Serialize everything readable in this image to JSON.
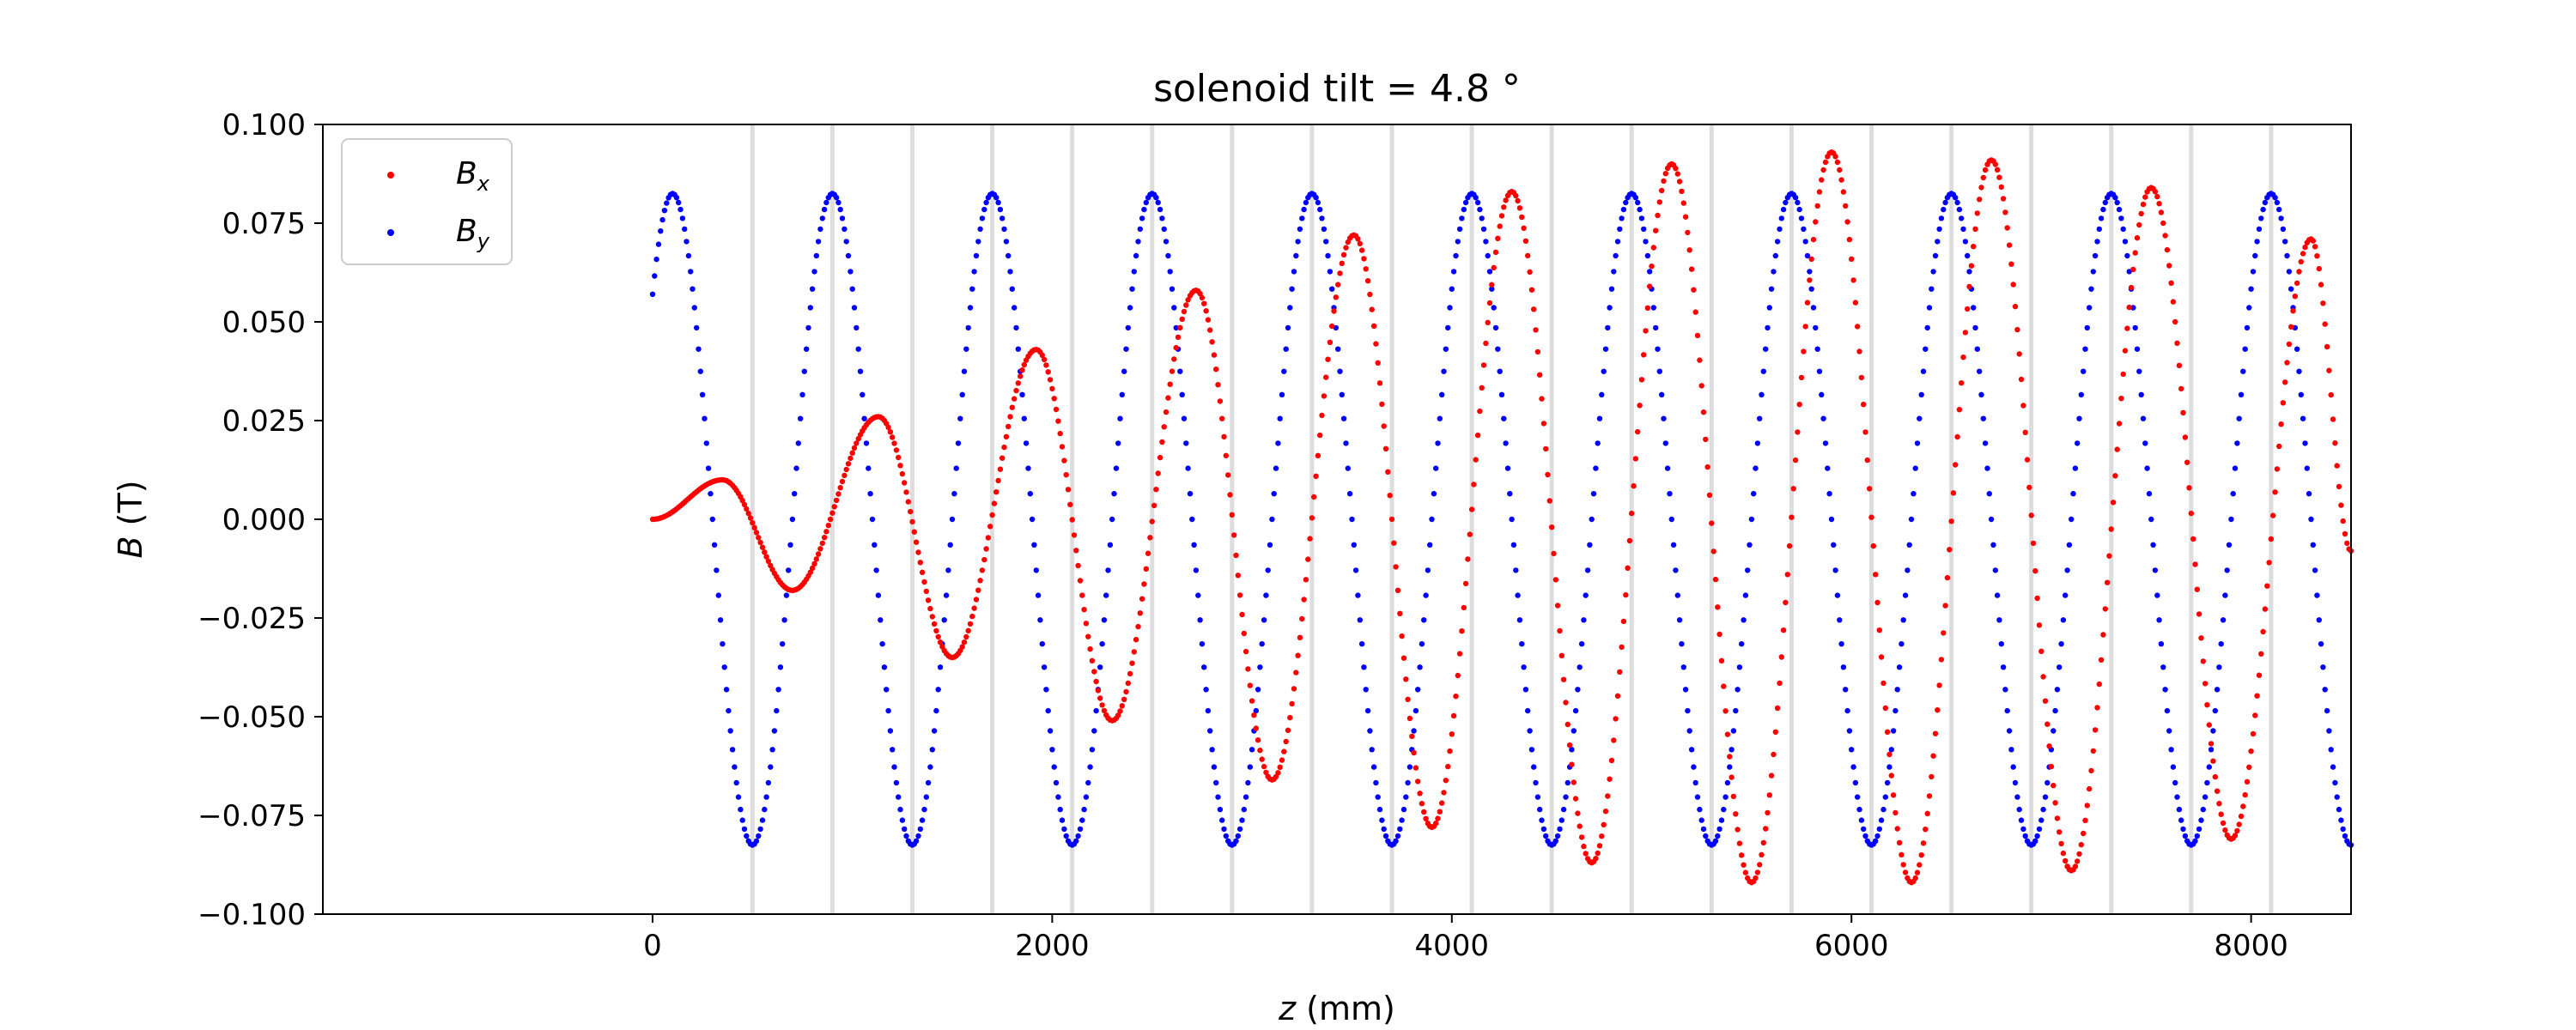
{
  "chart_data": {
    "type": "scatter",
    "title": "solenoid tilt = 4.8 °",
    "xlabel_var": "z",
    "xlabel_unit": "(mm)",
    "ylabel_var": "B",
    "ylabel_unit": "(T)",
    "xlim": [
      -1650,
      8500
    ],
    "ylim": [
      -0.1,
      0.1
    ],
    "xticks": [
      0,
      2000,
      4000,
      6000,
      8000
    ],
    "yticks": [
      -0.1,
      -0.075,
      -0.05,
      -0.025,
      0.0,
      0.025,
      0.05,
      0.075,
      0.1
    ],
    "ytick_labels": [
      "−0.100",
      "−0.075",
      "−0.050",
      "−0.025",
      "0.000",
      "0.025",
      "0.050",
      "0.075",
      "0.100"
    ],
    "legend_position": "upper-left",
    "vertical_gridlines_x": [
      500,
      900,
      1300,
      1700,
      2100,
      2500,
      2900,
      3300,
      3700,
      4100,
      4500,
      4900,
      5300,
      5700,
      6100,
      6500,
      6900,
      7300,
      7700,
      8100
    ],
    "series": [
      {
        "name": "B_x",
        "legend_main": "B",
        "legend_sub": "x",
        "color": "#ff0000",
        "x_range": [
          0,
          8500
        ],
        "period_mm": 800,
        "extrema": [
          {
            "x": 0,
            "y": 0.0
          },
          {
            "x": 350,
            "y": 0.01
          },
          {
            "x": 700,
            "y": -0.018
          },
          {
            "x": 1130,
            "y": 0.026
          },
          {
            "x": 1500,
            "y": -0.035
          },
          {
            "x": 1920,
            "y": 0.043
          },
          {
            "x": 2300,
            "y": -0.051
          },
          {
            "x": 2720,
            "y": 0.058
          },
          {
            "x": 3100,
            "y": -0.066
          },
          {
            "x": 3510,
            "y": 0.072
          },
          {
            "x": 3900,
            "y": -0.078
          },
          {
            "x": 4300,
            "y": 0.083
          },
          {
            "x": 4700,
            "y": -0.087
          },
          {
            "x": 5100,
            "y": 0.09
          },
          {
            "x": 5500,
            "y": -0.092
          },
          {
            "x": 5900,
            "y": 0.093
          },
          {
            "x": 6300,
            "y": -0.092
          },
          {
            "x": 6700,
            "y": 0.091
          },
          {
            "x": 7100,
            "y": -0.089
          },
          {
            "x": 7500,
            "y": 0.084
          },
          {
            "x": 7900,
            "y": -0.081
          },
          {
            "x": 8300,
            "y": 0.071
          },
          {
            "x": 8500,
            "y": -0.008
          }
        ]
      },
      {
        "name": "B_y",
        "legend_main": "B",
        "legend_sub": "y",
        "color": "#0000ff",
        "x_range": [
          0,
          8500
        ],
        "amplitude": 0.0825,
        "period_mm": 800,
        "first_max_x": 100,
        "start_y": 0.057,
        "last_min_x": 8500,
        "last_min_y": -0.083
      }
    ]
  }
}
